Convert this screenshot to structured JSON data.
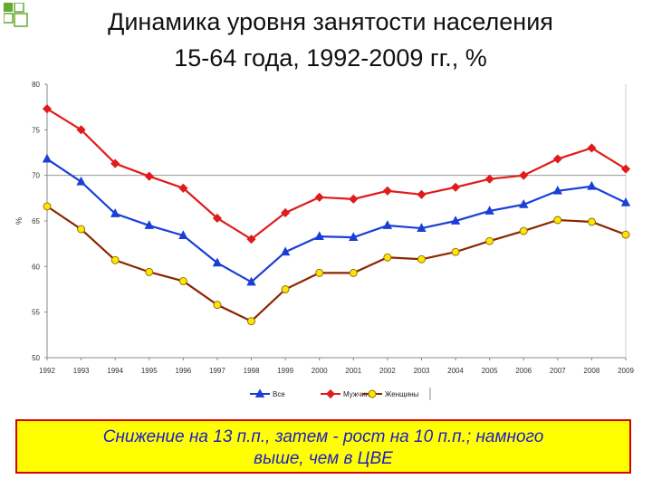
{
  "slide": {
    "title_line1": "Динамика уровня занятости населения",
    "title_line2": "15-64 года, 1992-2009 гг., %",
    "callout_line1": "Снижение на 13 п.п., затем - рост на 10 п.п.; намного",
    "callout_line2": "выше, чем в ЦВЕ"
  },
  "colors": {
    "all": "#1a3fd6",
    "men": "#e01b1b",
    "women": "#8b2500",
    "women_marker": "#ffe600",
    "callout_bg": "#ffff00",
    "callout_border": "#d90000",
    "callout_text": "#1f1fc8",
    "corner_accent": "#66a832"
  },
  "chart_data": {
    "type": "line",
    "categories": [
      "1992",
      "1993",
      "1994",
      "1995",
      "1996",
      "1997",
      "1998",
      "1999",
      "2000",
      "2001",
      "2002",
      "2003",
      "2004",
      "2005",
      "2006",
      "2007",
      "2008",
      "2009"
    ],
    "ylim": [
      50,
      80
    ],
    "yticks": [
      50,
      55,
      60,
      65,
      70,
      75,
      80
    ],
    "ylabel": "%",
    "xlabel": "",
    "reference_line": 70,
    "legend_position": "bottom",
    "series": [
      {
        "name": "Все",
        "marker": "triangle",
        "values": [
          71.8,
          69.3,
          65.8,
          64.5,
          63.4,
          60.4,
          58.3,
          61.6,
          63.3,
          63.2,
          64.5,
          64.2,
          65.0,
          66.1,
          66.8,
          68.3,
          68.8,
          67.0
        ]
      },
      {
        "name": "Мужчины",
        "marker": "diamond",
        "values": [
          77.3,
          75.0,
          71.3,
          69.9,
          68.6,
          65.3,
          63.0,
          65.9,
          67.6,
          67.4,
          68.3,
          67.9,
          68.7,
          69.6,
          70.0,
          71.8,
          73.0,
          70.7
        ]
      },
      {
        "name": "Женщины",
        "marker": "circle",
        "values": [
          66.6,
          64.1,
          60.7,
          59.4,
          58.4,
          55.8,
          54.0,
          57.5,
          59.3,
          59.3,
          61.0,
          60.8,
          61.6,
          62.8,
          63.9,
          65.1,
          64.9,
          63.5
        ]
      }
    ]
  }
}
